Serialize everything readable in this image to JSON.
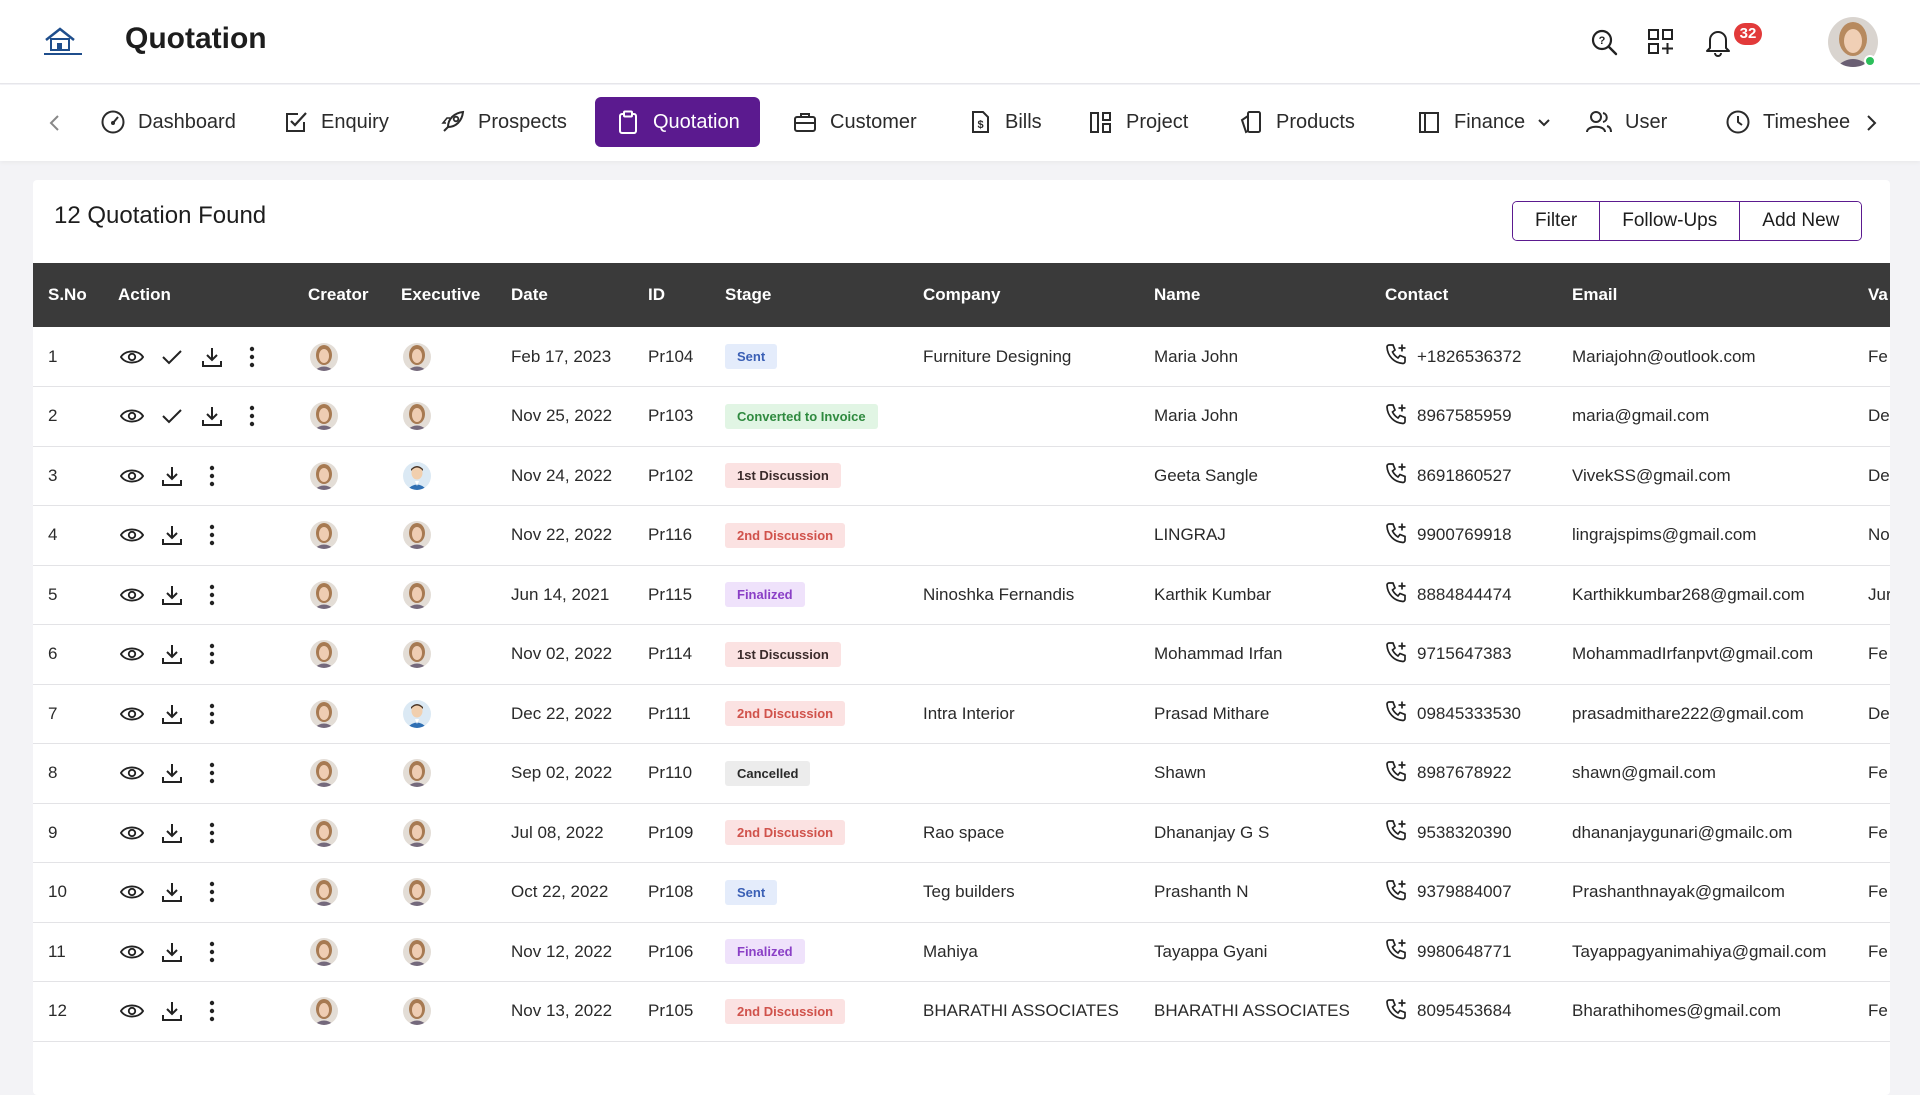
{
  "header": {
    "title": "Quotation",
    "notification_count": "32",
    "icons": [
      "search-icon",
      "apps-icon",
      "bell-icon"
    ]
  },
  "nav": {
    "items": [
      {
        "label": "Dashboard",
        "icon": "dashboard-icon"
      },
      {
        "label": "Enquiry",
        "icon": "checkbox-icon"
      },
      {
        "label": "Prospects",
        "icon": "rocket-icon"
      },
      {
        "label": "Quotation",
        "icon": "clipboard-icon",
        "active": true
      },
      {
        "label": "Customer",
        "icon": "briefcase-icon"
      },
      {
        "label": "Bills",
        "icon": "bill-icon"
      },
      {
        "label": "Project",
        "icon": "project-icon"
      },
      {
        "label": "Products",
        "icon": "products-icon"
      },
      {
        "label": "Finance",
        "icon": "finance-icon"
      },
      {
        "label": "User",
        "icon": "users-icon"
      },
      {
        "label": "Timeshee",
        "icon": "clock-icon"
      }
    ]
  },
  "main": {
    "count_title": "12 Quotation Found",
    "buttons": {
      "filter": "Filter",
      "followups": "Follow-Ups",
      "add_new": "Add New"
    },
    "columns": [
      "S.No",
      "Action",
      "Creator",
      "Executive",
      "Date",
      "ID",
      "Stage",
      "Company",
      "Name",
      "Contact",
      "Email",
      "Va"
    ],
    "rows": [
      {
        "sno": "1",
        "date": "Feb 17, 2023",
        "id": "Pr104",
        "stage": "Sent",
        "stage_kind": "sent",
        "company": "Furniture Designing",
        "name": "Maria John",
        "contact": "+1826536372",
        "email": "Mariajohn@outlook.com",
        "va": "Fe",
        "has_check": true,
        "exec_avatar": "female"
      },
      {
        "sno": "2",
        "date": "Nov 25, 2022",
        "id": "Pr103",
        "stage": "Converted to Invoice",
        "stage_kind": "conv",
        "company": "",
        "name": "Maria John",
        "contact": "8967585959",
        "email": "maria@gmail.com",
        "va": "De",
        "has_check": true,
        "exec_avatar": "female"
      },
      {
        "sno": "3",
        "date": "Nov 24, 2022",
        "id": "Pr102",
        "stage": "1st Discussion",
        "stage_kind": "d1",
        "company": "",
        "name": "Geeta Sangle",
        "contact": "8691860527",
        "email": "VivekSS@gmail.com",
        "va": "De",
        "has_check": false,
        "exec_avatar": "male"
      },
      {
        "sno": "4",
        "date": "Nov 22, 2022",
        "id": "Pr116",
        "stage": "2nd Discussion",
        "stage_kind": "d2",
        "company": "",
        "name": "LINGRAJ",
        "contact": "9900769918",
        "email": "lingrajspims@gmail.com",
        "va": "No",
        "has_check": false,
        "exec_avatar": "female"
      },
      {
        "sno": "5",
        "date": "Jun 14, 2021",
        "id": "Pr115",
        "stage": "Finalized",
        "stage_kind": "fin",
        "company": "Ninoshka Fernandis",
        "name": "Karthik Kumbar",
        "contact": "8884844474",
        "email": "Karthikkumbar268@gmail.com",
        "va": "Jur",
        "has_check": false,
        "exec_avatar": "female"
      },
      {
        "sno": "6",
        "date": "Nov 02, 2022",
        "id": "Pr114",
        "stage": "1st Discussion",
        "stage_kind": "d1",
        "company": "",
        "name": "Mohammad Irfan",
        "contact": "9715647383",
        "email": "MohammadIrfanpvt@gmail.com",
        "va": "Fe",
        "has_check": false,
        "exec_avatar": "female"
      },
      {
        "sno": "7",
        "date": "Dec 22, 2022",
        "id": "Pr111",
        "stage": "2nd Discussion",
        "stage_kind": "d2",
        "company": "Intra Interior",
        "name": "Prasad Mithare",
        "contact": "09845333530",
        "email": "prasadmithare222@gmail.com",
        "va": "De",
        "has_check": false,
        "exec_avatar": "male"
      },
      {
        "sno": "8",
        "date": "Sep 02, 2022",
        "id": "Pr110",
        "stage": "Cancelled",
        "stage_kind": "can",
        "company": "",
        "name": "Shawn",
        "contact": "8987678922",
        "email": "shawn@gmail.com",
        "va": "Fe",
        "has_check": false,
        "exec_avatar": "female"
      },
      {
        "sno": "9",
        "date": "Jul 08, 2022",
        "id": "Pr109",
        "stage": "2nd Discussion",
        "stage_kind": "d2",
        "company": "Rao space",
        "name": "Dhananjay G S",
        "contact": "9538320390",
        "email": "dhananjaygunari@gmailc.om",
        "va": "Fe",
        "has_check": false,
        "exec_avatar": "female"
      },
      {
        "sno": "10",
        "date": "Oct 22, 2022",
        "id": "Pr108",
        "stage": "Sent",
        "stage_kind": "sent",
        "company": "Teg builders",
        "name": "Prashanth N",
        "contact": "9379884007",
        "email": "Prashanthnayak@gmailcom",
        "va": "Fe",
        "has_check": false,
        "exec_avatar": "female"
      },
      {
        "sno": "11",
        "date": "Nov 12, 2022",
        "id": "Pr106",
        "stage": "Finalized",
        "stage_kind": "fin",
        "company": "Mahiya",
        "name": "Tayappa Gyani",
        "contact": "9980648771",
        "email": "Tayappagyanimahiya@gmail.com",
        "va": "Fe",
        "has_check": false,
        "exec_avatar": "female"
      },
      {
        "sno": "12",
        "date": "Nov 13, 2022",
        "id": "Pr105",
        "stage": "2nd Discussion",
        "stage_kind": "d2",
        "company": "BHARATHI ASSOCIATES",
        "name": "BHARATHI ASSOCIATES",
        "contact": "8095453684",
        "email": "Bharathihomes@gmail.com",
        "va": "Fe",
        "has_check": false,
        "exec_avatar": "female"
      }
    ]
  },
  "colors": {
    "accent": "#5b1a8f",
    "header_row": "#3a3a3a",
    "badge": "#e23a3a",
    "online": "#2bbf5a"
  }
}
